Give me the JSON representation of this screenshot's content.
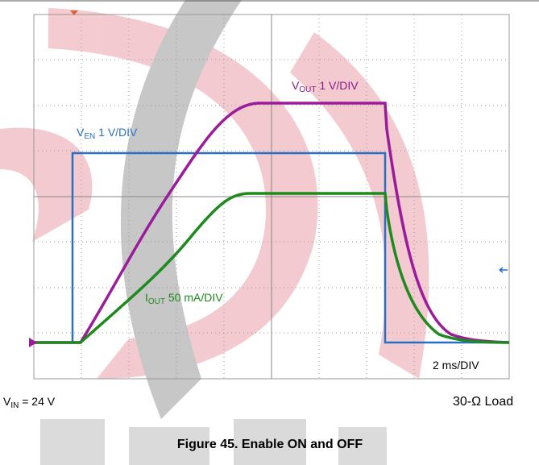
{
  "figure": {
    "traces": [
      {
        "main": "V",
        "sub": "OUT",
        "rest": " 1 V/DIV"
      },
      {
        "main": "V",
        "sub": "EN",
        "rest": " 1 V/DIV"
      },
      {
        "main": "I",
        "sub": "OUT",
        "rest": " 50 mA/DIV"
      }
    ],
    "timebase": "2 ms/DIV",
    "input": {
      "main": "V",
      "sub": "IN",
      "rest": " = 24 V"
    },
    "load": "30-Ω Load",
    "caption": "Figure 45. Enable ON and OFF"
  }
}
